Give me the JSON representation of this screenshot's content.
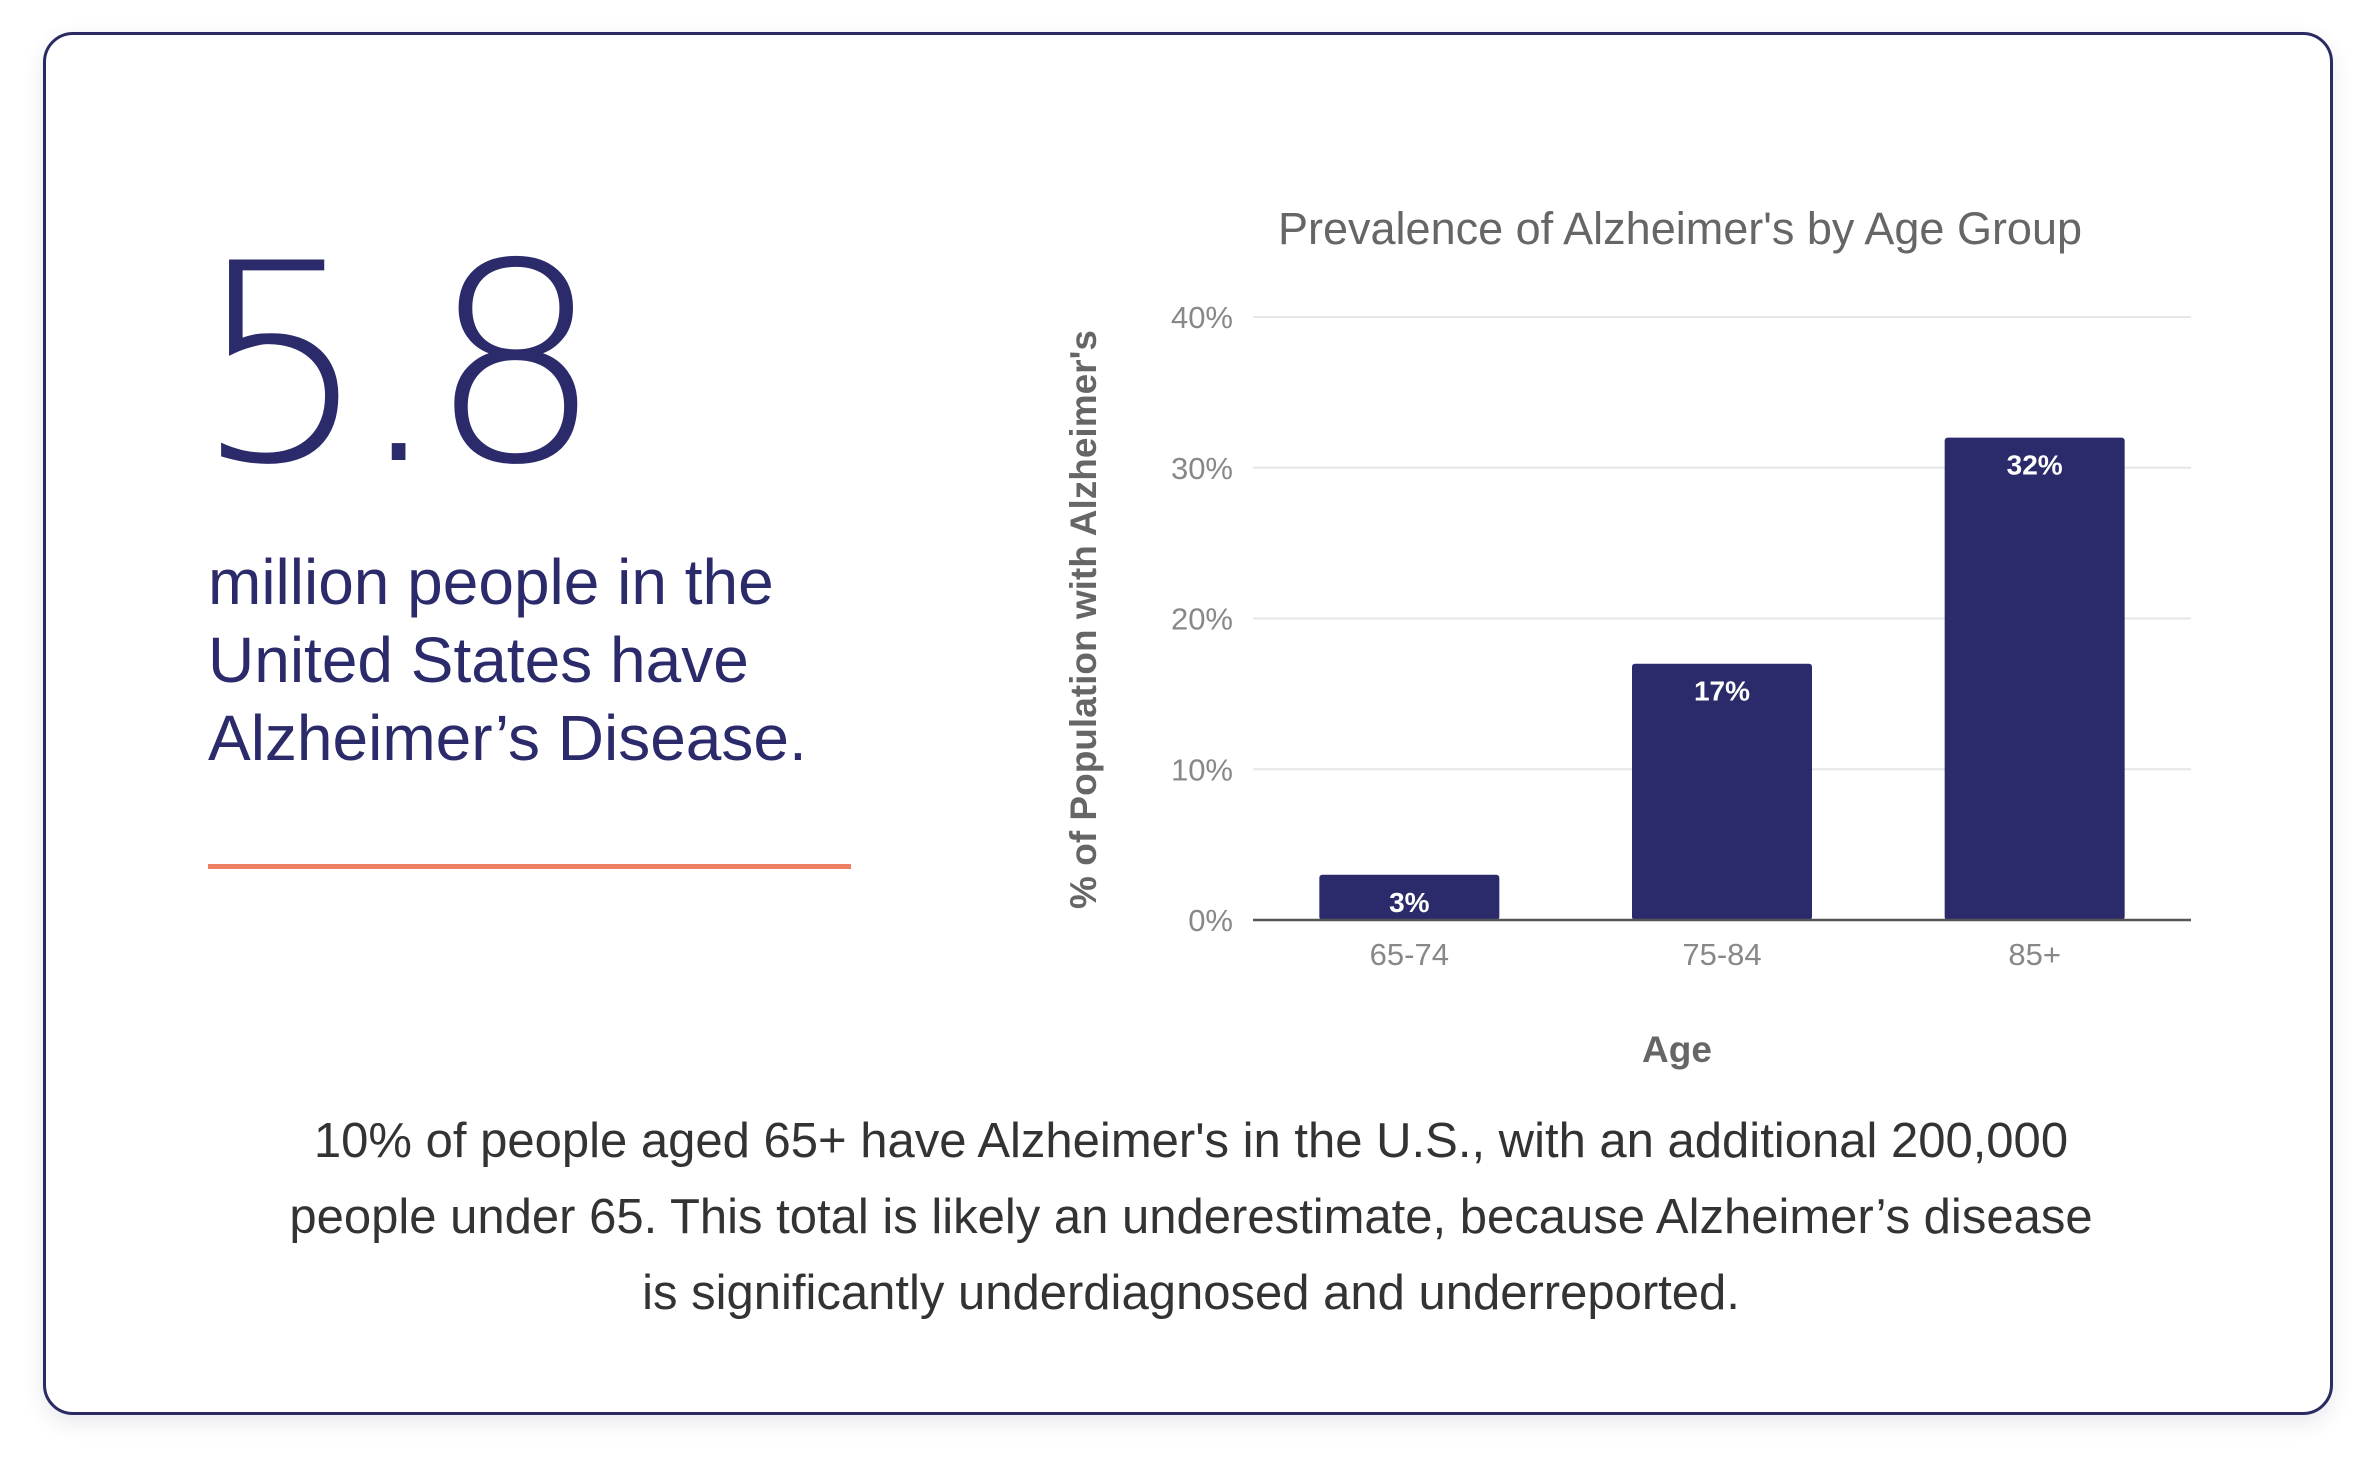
{
  "stat": {
    "value": "5.8",
    "caption": "million people in the United States have Alzheimer’s Disease."
  },
  "footnote": "10% of people aged 65+ have Alzheimer's in the U.S., with an additional 200,000 people under 65. This total is likely an underestimate, because Alzheimer’s disease is significantly underdiagnosed and underreported.",
  "colors": {
    "bar": "#2b2b6b",
    "accent_rule": "#ef8064",
    "text_dark": "#2b2b6b",
    "grid": "#e6e6e6"
  },
  "chart_data": {
    "type": "bar",
    "title": "Prevalence of Alzheimer's by Age Group",
    "xlabel": "Age",
    "ylabel": "% of Population with Alzheimer's",
    "categories": [
      "65-74",
      "75-84",
      "85+"
    ],
    "values": [
      3,
      17,
      32
    ],
    "data_labels": [
      "3%",
      "17%",
      "32%"
    ],
    "ylim": [
      0,
      40
    ],
    "yticks": [
      0,
      10,
      20,
      30,
      40
    ],
    "ytick_labels": [
      "0%",
      "10%",
      "20%",
      "30%",
      "40%"
    ],
    "grid": true,
    "legend": "none"
  }
}
